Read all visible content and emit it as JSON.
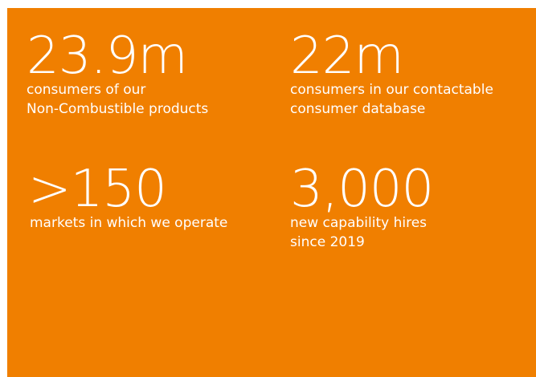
{
  "stats": [
    {
      "value": "23.9m",
      "lines": [
        "consumers of our",
        "Non-Combustible products"
      ]
    },
    {
      "value": "22m",
      "lines": [
        "consumers in our contactable",
        "consumer database"
      ]
    },
    {
      "value": ">150",
      "lines": [
        "markets in which we operate"
      ]
    },
    {
      "value": "3,000",
      "lines": [
        "new capability hires",
        "since 2019"
      ]
    }
  ]
}
